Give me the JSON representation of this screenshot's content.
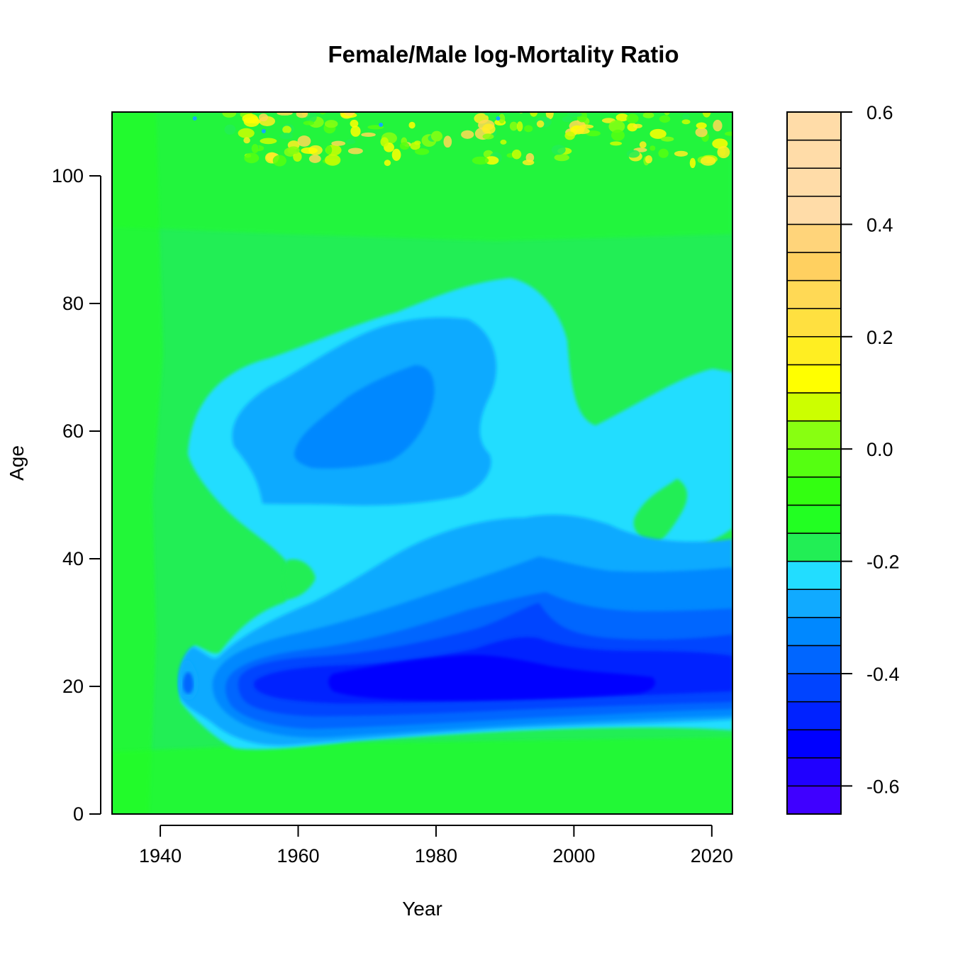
{
  "chart_data": {
    "type": "heatmap",
    "title": "Female/Male log-Mortality Ratio",
    "xlabel": "Year",
    "ylabel": "Age",
    "xlim": [
      1933,
      2023
    ],
    "ylim": [
      0,
      110
    ],
    "x_ticks": [
      "1940",
      "1960",
      "1980",
      "2000",
      "2020"
    ],
    "y_ticks": [
      "0",
      "20",
      "40",
      "60",
      "80",
      "100"
    ],
    "colorbar": {
      "range": [
        -0.65,
        0.6
      ],
      "step": 0.05,
      "ticks": [
        "-0.6",
        "-0.4",
        "-0.2",
        "0.0",
        "0.2",
        "0.4",
        "0.6"
      ],
      "colors_bottom_to_top": [
        "#3F00FF",
        "#2000FF",
        "#0000FF",
        "#0022FF",
        "#0044FF",
        "#0066FF",
        "#0088FF",
        "#11AAFF",
        "#22DDFF",
        "#22EE55",
        "#22FF22",
        "#33FF11",
        "#55FF11",
        "#88FF11",
        "#CCFF00",
        "#FFFF00",
        "#FFEE22",
        "#FFE040",
        "#FFD955",
        "#FFD060",
        "#FFD47A",
        "#FFDCA8"
      ]
    },
    "regions": [
      {
        "level": "-0.15 to -0.10",
        "area": "background: most ages and years"
      },
      {
        "level": "-0.25 to -0.20",
        "area": "1945-2023, ages 10-83"
      },
      {
        "level": "-0.30 to -0.25",
        "area": "1950-1988, ages 48-78; 1955-2023, ages 13-45"
      },
      {
        "level": "-0.35 to -0.30",
        "area": "1963-1980, ages 55-70"
      },
      {
        "level": "-0.45 to -0.40",
        "area": "1953-2023, ages 16-28"
      },
      {
        "level": "-0.55 to -0.50",
        "area": "1965-2010, ages 18-25"
      },
      {
        "level": "0.10 to 0.40",
        "area": "ages above 103, noisy"
      }
    ]
  }
}
